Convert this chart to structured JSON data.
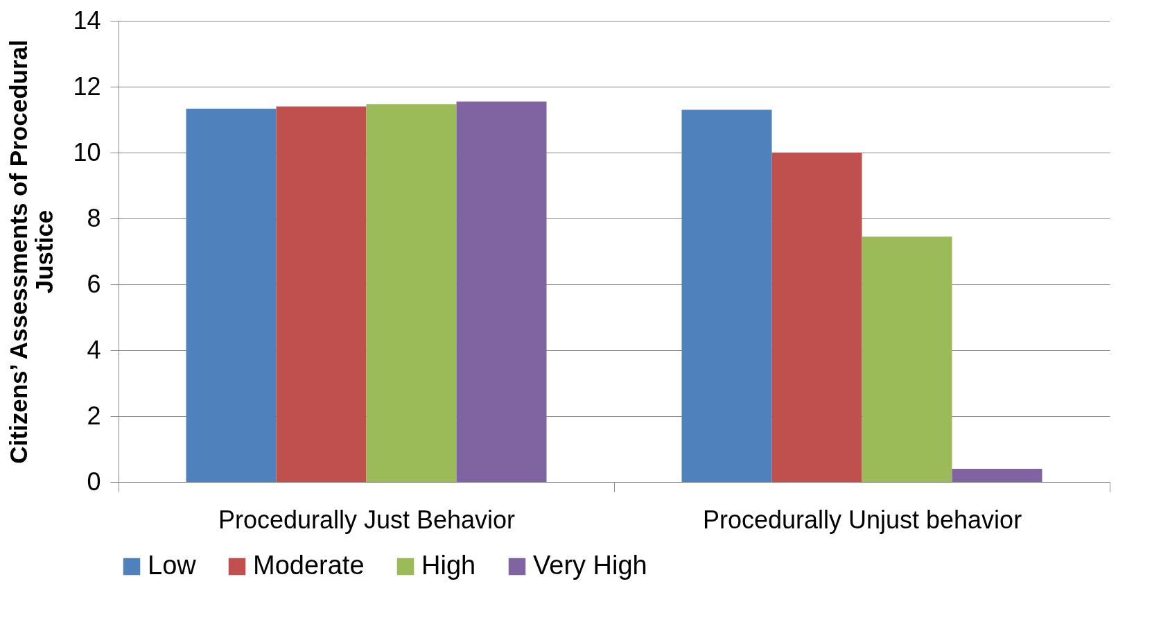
{
  "chart_data": {
    "type": "bar",
    "ylabel": "Citizens’ Assessments of Procedural Justice",
    "categories": [
      "Procedurally Just Behavior",
      "Procedurally Unjust behavior"
    ],
    "series": [
      {
        "name": "Low",
        "color": "#4f81bd",
        "values": [
          11.33,
          11.3
        ]
      },
      {
        "name": "Moderate",
        "color": "#c0504d",
        "values": [
          11.4,
          10.0
        ]
      },
      {
        "name": "High",
        "color": "#9bbb59",
        "values": [
          11.47,
          7.45
        ]
      },
      {
        "name": "Very High",
        "color": "#8064a2",
        "values": [
          11.55,
          0.4
        ]
      }
    ],
    "ylim": [
      0,
      14
    ],
    "yticks": [
      0,
      2,
      4,
      6,
      8,
      10,
      12,
      14
    ],
    "grid": "y",
    "legend": "bottom"
  }
}
